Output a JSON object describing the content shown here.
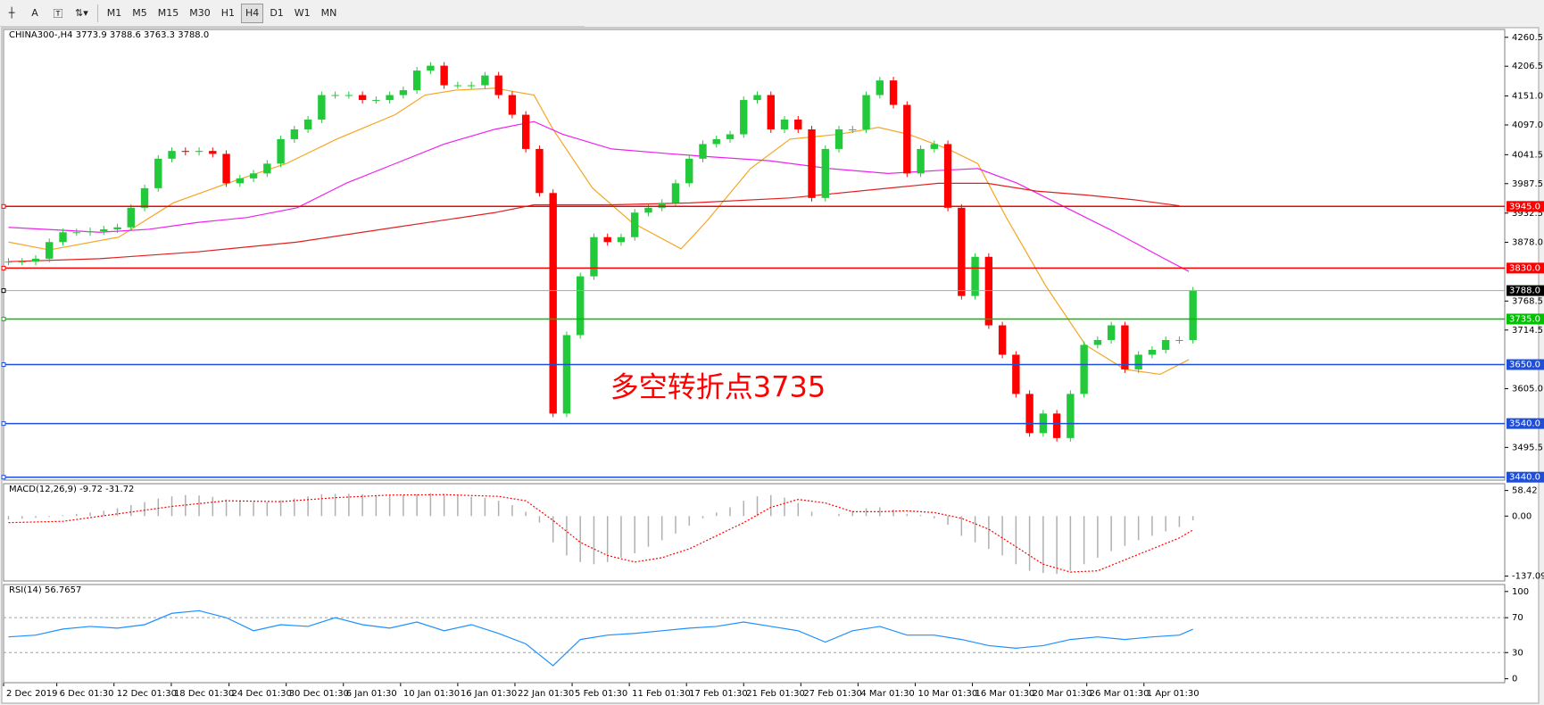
{
  "toolbar": {
    "timeframes": [
      "M1",
      "M5",
      "M15",
      "M30",
      "H1",
      "H4",
      "D1",
      "W1",
      "MN"
    ],
    "active_timeframe": "H4",
    "tools": [
      "A"
    ]
  },
  "chart_data": [
    {
      "type": "candlestick",
      "title": "CHINA300-,H4 3773.9 3788.6 3763.3 3788.0",
      "up_color": "#22c93a",
      "down_color": "#ff0000",
      "values": [
        3842,
        3842,
        3847.5,
        3878.5,
        3896.8,
        3896.8,
        3898.7,
        3902.3,
        3906,
        3942.5,
        3979,
        4034,
        4048.5,
        4046.7,
        4048.5,
        4043,
        3988.2,
        3997.3,
        4006.5,
        4024.8,
        4070.5,
        4088.7,
        4107,
        4152.7,
        4152.7,
        4152.7,
        4143.5,
        4143.5,
        4152.7,
        4161.8,
        4198.4,
        4207.5,
        4171,
        4171,
        4171,
        4189.2,
        4152.7,
        4116,
        4052.2,
        3970,
        3558.7,
        3705,
        3814.6,
        3887.7,
        3878.5,
        3887.7,
        3933.4,
        3942.5,
        3951.7,
        3988.2,
        4034,
        4061.3,
        4070.5,
        4079.5,
        4143.5,
        4152.7,
        4088.7,
        4107,
        4088.7,
        3960.8,
        4052.2,
        4088.7,
        4088.7,
        4152.7,
        4180,
        4134.4,
        4006.5,
        4052.2,
        4061.3,
        3942.5,
        3778,
        3851,
        3723.2,
        3668.4,
        3595.3,
        3522.2,
        3558.7,
        3513,
        3595.3,
        3686.7,
        3695.8,
        3723.2,
        3641,
        3668.4,
        3677.5,
        3695.8,
        3695.8,
        3788.0
      ],
      "xlim": [
        -0.36,
        109.9
      ],
      "xticks": [
        {
          "value": -0.36,
          "label": "2 Dec 2019"
        },
        {
          "value": 3.55,
          "label": "6 Dec 01:30"
        },
        {
          "value": 7.75,
          "label": "12 Dec 01:30"
        },
        {
          "value": 11.96,
          "label": "18 Dec 01:30"
        },
        {
          "value": 16.2,
          "label": "24 Dec 01:30"
        },
        {
          "value": 20.4,
          "label": "30 Dec 01:30"
        },
        {
          "value": 24.6,
          "label": "6 Jan 01:30"
        },
        {
          "value": 28.8,
          "label": "10 Jan 01:30"
        },
        {
          "value": 33,
          "label": "16 Jan 01:30"
        },
        {
          "value": 37.2,
          "label": "22 Jan 01:30"
        },
        {
          "value": 41.4,
          "label": "5 Feb 01:30"
        },
        {
          "value": 45.6,
          "label": "11 Feb 01:30"
        },
        {
          "value": 49.8,
          "label": "17 Feb 01:30"
        },
        {
          "value": 54,
          "label": "21 Feb 01:30"
        },
        {
          "value": 58.2,
          "label": "27 Feb 01:30"
        },
        {
          "value": 62.4,
          "label": "4 Mar 01:30"
        },
        {
          "value": 66.6,
          "label": "10 Mar 01:30"
        },
        {
          "value": 70.8,
          "label": "16 Mar 01:30"
        },
        {
          "value": 75,
          "label": "20 Mar 01:30"
        },
        {
          "value": 79.2,
          "label": "26 Mar 01:30"
        },
        {
          "value": 83.4,
          "label": "1 Apr 01:30"
        }
      ],
      "ylim": [
        3434.5,
        4275.1
      ],
      "yticks": [
        4260.5,
        4206.5,
        {
          "value": 4151,
          "label": "4151.0"
        },
        {
          "value": 4097,
          "label": "4097.0"
        },
        4041.5,
        3987.5,
        3932.5,
        {
          "value": 3878,
          "label": "3878.0"
        },
        3768.5,
        3714.5,
        {
          "value": 3605,
          "label": "3605.0"
        },
        3495.5
      ],
      "lines": [
        {
          "color": "#f5a623",
          "x": [
            0,
            3.0,
            8.1,
            12.1,
            16.1,
            20.4,
            24.1,
            28.4,
            30.6,
            32.8,
            35.7,
            38.6,
            40.0,
            42.9,
            45.8,
            49.4,
            51.2,
            54.5,
            57.4,
            61.0,
            63.9,
            66.1,
            69.0,
            71.2,
            73.3,
            76.2,
            79.1,
            82.0,
            84.6,
            86.7
          ],
          "values": [
            3878.5,
            3863.9,
            3887.7,
            3951.6,
            3988.2,
            4024.8,
            4070.5,
            4116.1,
            4152.7,
            4161.8,
            4165.5,
            4152.7,
            4088.7,
            3979,
            3915,
            3865.8,
            3915,
            4015.6,
            4070.5,
            4079.6,
            4092.4,
            4079.6,
            4052.2,
            4024.8,
            3924,
            3796.3,
            3686.7,
            3641,
            3631.9,
            3659.3
          ]
        },
        {
          "color": "#ee22ee",
          "x": [
            0,
            6.7,
            10.3,
            13.9,
            17.5,
            21.2,
            24.8,
            28.4,
            32.0,
            35.7,
            38.6,
            40.7,
            44.3,
            48.7,
            51.6,
            55.9,
            60.3,
            64.6,
            68.3,
            71.2,
            74.1,
            77.7,
            81.3,
            84.9,
            86.7
          ],
          "values": [
            3906,
            3896.8,
            3902.3,
            3915.1,
            3924.2,
            3942.5,
            3988.2,
            4024.8,
            4061.3,
            4088.7,
            4103.3,
            4079.6,
            4052.2,
            4043,
            4037.5,
            4030.2,
            4015.6,
            4006.5,
            4012,
            4015.6,
            3988.2,
            3942.5,
            3896.8,
            3847.5,
            3823.7
          ]
        },
        {
          "color": "#e02020",
          "x": [
            0,
            6.7,
            13.9,
            21.2,
            28.4,
            35.7,
            38.6,
            44.3,
            50.1,
            57.4,
            64.6,
            68.3,
            71.9,
            75.5,
            79.1,
            82.8,
            86.0
          ],
          "values": [
            3842,
            3847.5,
            3860.3,
            3878.5,
            3906,
            3933.4,
            3948,
            3948,
            3951.6,
            3960.8,
            3979,
            3988.2,
            3988.2,
            3973.6,
            3966.3,
            3957.1,
            3946.2
          ]
        }
      ],
      "levels": [
        {
          "value": 3945,
          "label": "3945.0",
          "color": "#ff0000"
        },
        {
          "value": 3830,
          "label": "3830.0",
          "color": "#ff0000"
        },
        {
          "value": 3788,
          "label": "3788.0",
          "color": "#000000"
        },
        {
          "value": 3735,
          "label": "3735.0",
          "color": "#00c000"
        },
        {
          "value": 3650,
          "label": "3650.0",
          "color": "#1f4fd8"
        },
        {
          "value": 3540,
          "label": "3540.0",
          "color": "#1f4fd8"
        },
        {
          "value": 3440,
          "label": "3440.0",
          "color": "#1f4fd8"
        }
      ],
      "annotation": "多空转折点3735",
      "annotation_color": "#ff0000"
    },
    {
      "type": "bar",
      "title": "MACD(12,26,9) -9.72 -31.72",
      "color": "#b0b0b0",
      "values": [
        -8,
        -6,
        -4,
        -2,
        2,
        5,
        8,
        12,
        18,
        25,
        32,
        40,
        45,
        48,
        47,
        44,
        38,
        34,
        32,
        32,
        36,
        40,
        45,
        50,
        51,
        51,
        50,
        48,
        47,
        48,
        50,
        52,
        50,
        47,
        44,
        42,
        35,
        25,
        10,
        -15,
        -60,
        -90,
        -105,
        -110,
        -105,
        -95,
        -85,
        -70,
        -55,
        -40,
        -22,
        -5,
        8,
        20,
        35,
        45,
        48,
        42,
        30,
        10,
        0,
        5,
        12,
        18,
        20,
        15,
        5,
        3,
        -5,
        -20,
        -45,
        -60,
        -75,
        -90,
        -110,
        -125,
        -130,
        -132,
        -125,
        -110,
        -95,
        -80,
        -68,
        -55,
        -45,
        -35,
        -25,
        -9.72
      ],
      "signal": {
        "color": "#ff0000",
        "x": [
          0,
          4,
          8,
          12,
          16,
          20,
          24,
          28,
          32,
          36,
          38,
          40,
          42,
          44,
          46,
          48,
          50,
          52,
          54,
          56,
          58,
          60,
          62,
          64,
          66,
          68,
          70,
          72,
          74,
          76,
          78,
          80,
          82,
          84,
          86,
          87
        ],
        "values": [
          -15,
          -12,
          5,
          22,
          35,
          33,
          42,
          48,
          49,
          45,
          35,
          -10,
          -60,
          -90,
          -105,
          -95,
          -75,
          -45,
          -15,
          20,
          38,
          30,
          10,
          10,
          12,
          8,
          -5,
          -30,
          -70,
          -110,
          -128,
          -125,
          -100,
          -75,
          -50,
          -31.72
        ]
      },
      "ylim": [
        -148.2,
        74.0
      ],
      "yticks": [
        58.42,
        {
          "value": 0,
          "label": "0.00"
        },
        -137.09
      ]
    },
    {
      "type": "line",
      "title": "RSI(14) 56.7657",
      "color": "#1e90ff",
      "x": [
        0,
        2,
        4,
        6,
        8,
        10,
        12,
        14,
        16,
        18,
        20,
        22,
        24,
        26,
        28,
        30,
        32,
        34,
        36,
        38,
        40,
        42,
        44,
        46,
        48,
        50,
        52,
        54,
        56,
        58,
        60,
        62,
        64,
        66,
        68,
        70,
        72,
        74,
        76,
        78,
        80,
        82,
        84,
        86,
        87
      ],
      "values": [
        48,
        50,
        57,
        60,
        58,
        62,
        75,
        78,
        70,
        55,
        62,
        60,
        70,
        62,
        58,
        65,
        55,
        62,
        52,
        40,
        15,
        45,
        50,
        52,
        55,
        58,
        60,
        65,
        60,
        55,
        42,
        55,
        60,
        50,
        50,
        45,
        38,
        35,
        38,
        45,
        48,
        45,
        48,
        50,
        56.7657
      ],
      "ylim": [
        -4.5,
        108
      ],
      "yticks": [
        100,
        70,
        30,
        0
      ],
      "levels": [
        70,
        30
      ]
    }
  ]
}
